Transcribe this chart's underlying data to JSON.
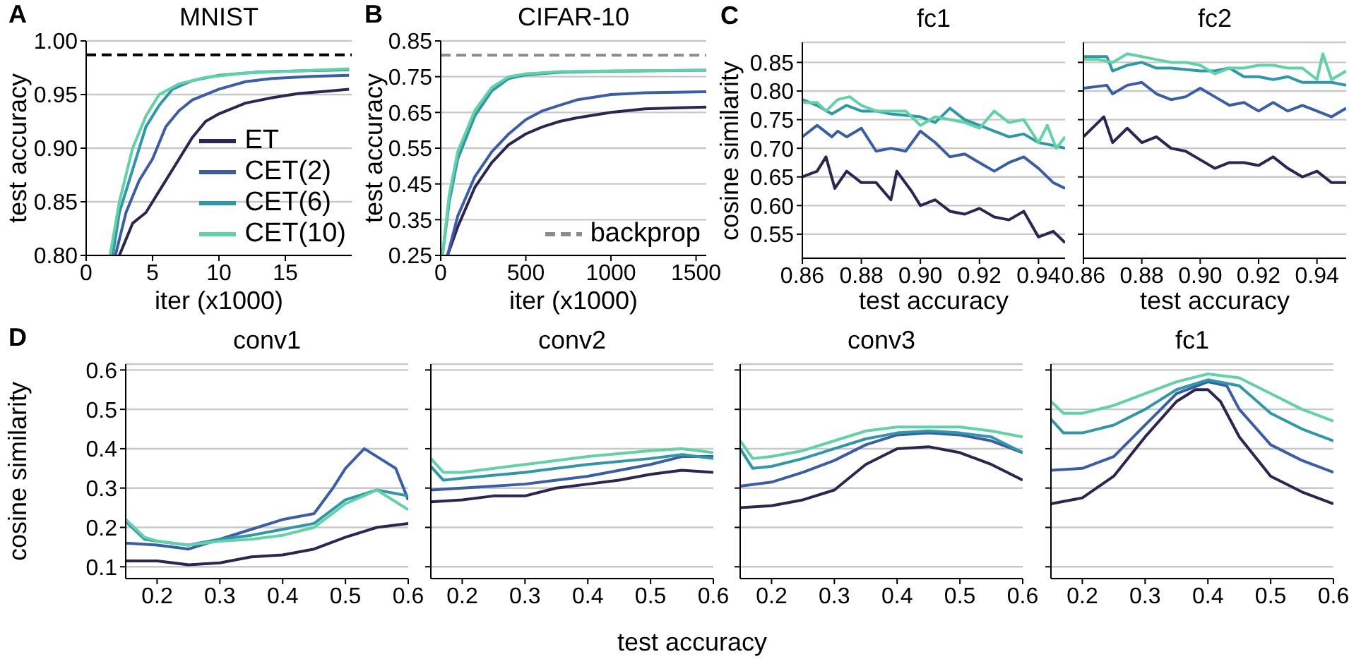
{
  "chart_data": [
    {
      "type": "line",
      "title": "MNIST",
      "xlabel": "iter (x1000)",
      "ylabel": "test accuracy",
      "annotations": [
        "A"
      ],
      "xlim": [
        0,
        20
      ],
      "xticks": [
        0,
        5,
        10,
        15
      ],
      "ylim": [
        0.8,
        1.0
      ],
      "yticks": [
        {
          "value": 0.8,
          "label": "0.80"
        },
        0.85,
        {
          "value": 0.9,
          "label": "0.90"
        },
        0.95,
        {
          "value": 1.0,
          "label": "1.00"
        }
      ],
      "grid": "y",
      "legend": "bottom right",
      "ref_lines": [
        {
          "axis": "y",
          "value": 0.987,
          "color": "#000000",
          "line_style": "dashed"
        }
      ],
      "series": [
        {
          "name": "ET",
          "color": "#2d2451",
          "x": [
            2.5,
            3.5,
            4.5,
            5,
            6,
            7,
            8,
            9,
            10,
            12,
            14,
            16,
            18,
            19.8
          ],
          "values": [
            0.8,
            0.83,
            0.84,
            0.85,
            0.87,
            0.89,
            0.91,
            0.925,
            0.932,
            0.942,
            0.947,
            0.951,
            0.953,
            0.955
          ]
        },
        {
          "name": "CET(2)",
          "color": "#3a5da8",
          "x": [
            2.2,
            3,
            4,
            5,
            6,
            7,
            8,
            10,
            12,
            14,
            17,
            19.8
          ],
          "values": [
            0.8,
            0.84,
            0.87,
            0.89,
            0.92,
            0.935,
            0.945,
            0.955,
            0.962,
            0.965,
            0.967,
            0.968
          ]
        },
        {
          "name": "CET(6)",
          "color": "#2e98a8",
          "x": [
            2,
            2.5,
            3.5,
            4.5,
            5.5,
            6.5,
            8,
            10,
            13,
            16,
            19.8
          ],
          "values": [
            0.8,
            0.84,
            0.88,
            0.92,
            0.94,
            0.955,
            0.963,
            0.968,
            0.971,
            0.972,
            0.973
          ]
        },
        {
          "name": "CET(10)",
          "color": "#5fd3a5",
          "x": [
            1.8,
            2.5,
            3.5,
            4.5,
            5.5,
            7,
            9,
            12,
            16,
            19.8
          ],
          "values": [
            0.8,
            0.85,
            0.9,
            0.93,
            0.95,
            0.96,
            0.966,
            0.97,
            0.972,
            0.974
          ]
        }
      ]
    },
    {
      "type": "line",
      "title": "CIFAR-10",
      "xlabel": "iter (x1000)",
      "ylabel": "test accuracy",
      "annotations": [
        "B"
      ],
      "xlim": [
        0,
        1560
      ],
      "xticks": [
        0,
        500,
        1000,
        1500
      ],
      "ylim": [
        0.25,
        0.85
      ],
      "yticks": [
        0.25,
        0.35,
        0.45,
        0.55,
        0.65,
        0.75,
        0.85
      ],
      "grid": "y",
      "legend": "bottom right",
      "ref_lines": [
        {
          "axis": "y",
          "value": 0.81,
          "label": "backprop",
          "color": "#8c8c8c",
          "line_style": "dashed"
        }
      ],
      "series": [
        {
          "color": "#2d2451",
          "x": [
            40,
            100,
            200,
            300,
            400,
            500,
            600,
            700,
            800,
            1000,
            1200,
            1400,
            1560
          ],
          "values": [
            0.25,
            0.33,
            0.44,
            0.51,
            0.56,
            0.59,
            0.61,
            0.625,
            0.635,
            0.65,
            0.66,
            0.663,
            0.665
          ]
        },
        {
          "color": "#3a5da8",
          "x": [
            40,
            100,
            200,
            300,
            400,
            500,
            600,
            700,
            800,
            1000,
            1200,
            1560
          ],
          "values": [
            0.25,
            0.36,
            0.47,
            0.54,
            0.59,
            0.63,
            0.655,
            0.67,
            0.685,
            0.7,
            0.705,
            0.708
          ]
        },
        {
          "color": "#2e98a8",
          "x": [
            10,
            50,
            100,
            200,
            300,
            400,
            500,
            700,
            1000,
            1560
          ],
          "values": [
            0.25,
            0.4,
            0.52,
            0.64,
            0.71,
            0.745,
            0.755,
            0.762,
            0.765,
            0.768
          ]
        },
        {
          "color": "#5fd3a5",
          "x": [
            10,
            50,
            100,
            200,
            300,
            400,
            500,
            700,
            1000,
            1560
          ],
          "values": [
            0.25,
            0.42,
            0.54,
            0.655,
            0.72,
            0.75,
            0.758,
            0.764,
            0.766,
            0.768
          ]
        }
      ]
    },
    {
      "type": "line",
      "title": "fc1",
      "xlabel": "test accuracy",
      "ylabel": "cosine similarity",
      "annotations": [
        "C"
      ],
      "xlim": [
        0.86,
        0.949
      ],
      "xticks": [
        0.86,
        0.88,
        {
          "value": 0.9,
          "label": "0.90"
        },
        0.92,
        0.94
      ],
      "ylim": [
        0.508,
        0.885
      ],
      "yticks": [
        0.55,
        {
          "value": 0.6,
          "label": "0.60"
        },
        0.65,
        {
          "value": 0.7,
          "label": "0.70"
        },
        0.75,
        {
          "value": 0.8,
          "label": "0.80"
        },
        0.85
      ],
      "grid": "y",
      "series": [
        {
          "color": "#2d2451",
          "x": [
            0.86,
            0.865,
            0.868,
            0.871,
            0.875,
            0.88,
            0.885,
            0.89,
            0.892,
            0.897,
            0.9,
            0.905,
            0.91,
            0.915,
            0.92,
            0.925,
            0.93,
            0.935,
            0.94,
            0.945,
            0.949
          ],
          "values": [
            0.65,
            0.66,
            0.685,
            0.63,
            0.66,
            0.64,
            0.64,
            0.61,
            0.66,
            0.625,
            0.6,
            0.61,
            0.59,
            0.585,
            0.595,
            0.58,
            0.575,
            0.59,
            0.545,
            0.555,
            0.535
          ]
        },
        {
          "color": "#3a5da8",
          "x": [
            0.86,
            0.865,
            0.87,
            0.872,
            0.875,
            0.88,
            0.885,
            0.89,
            0.895,
            0.9,
            0.905,
            0.91,
            0.915,
            0.92,
            0.925,
            0.93,
            0.935,
            0.94,
            0.945,
            0.949
          ],
          "values": [
            0.72,
            0.74,
            0.72,
            0.73,
            0.72,
            0.735,
            0.695,
            0.7,
            0.695,
            0.73,
            0.71,
            0.685,
            0.69,
            0.675,
            0.66,
            0.675,
            0.685,
            0.665,
            0.64,
            0.63
          ]
        },
        {
          "color": "#2e98a8",
          "x": [
            0.86,
            0.865,
            0.87,
            0.875,
            0.88,
            0.885,
            0.89,
            0.9,
            0.905,
            0.91,
            0.915,
            0.92,
            0.925,
            0.93,
            0.935,
            0.94,
            0.945,
            0.949
          ],
          "values": [
            0.785,
            0.775,
            0.76,
            0.775,
            0.765,
            0.765,
            0.76,
            0.755,
            0.745,
            0.77,
            0.75,
            0.74,
            0.73,
            0.72,
            0.725,
            0.71,
            0.705,
            0.7
          ]
        },
        {
          "color": "#5fd3a5",
          "x": [
            0.86,
            0.865,
            0.868,
            0.872,
            0.876,
            0.88,
            0.885,
            0.89,
            0.895,
            0.9,
            0.905,
            0.91,
            0.915,
            0.92,
            0.925,
            0.93,
            0.935,
            0.94,
            0.943,
            0.946,
            0.949
          ],
          "values": [
            0.78,
            0.78,
            0.765,
            0.785,
            0.79,
            0.775,
            0.765,
            0.765,
            0.765,
            0.74,
            0.755,
            0.75,
            0.745,
            0.735,
            0.765,
            0.745,
            0.75,
            0.71,
            0.74,
            0.7,
            0.72
          ]
        }
      ]
    },
    {
      "type": "line",
      "title": "fc2",
      "xlabel": "test accuracy",
      "xlim": [
        0.86,
        0.95
      ],
      "xticks": [
        0.86,
        0.88,
        {
          "value": 0.9,
          "label": "0.90"
        },
        0.92,
        0.94
      ],
      "ylim": [
        0.508,
        0.885
      ],
      "yticks": [
        0.55,
        0.6,
        0.65,
        0.7,
        0.75,
        0.8,
        0.85
      ],
      "grid": "y",
      "tick_labels": "x",
      "series": [
        {
          "color": "#2d2451",
          "x": [
            0.86,
            0.865,
            0.867,
            0.87,
            0.875,
            0.88,
            0.885,
            0.89,
            0.895,
            0.9,
            0.905,
            0.91,
            0.915,
            0.92,
            0.925,
            0.93,
            0.935,
            0.94,
            0.945,
            0.95
          ],
          "values": [
            0.72,
            0.745,
            0.755,
            0.71,
            0.735,
            0.71,
            0.72,
            0.7,
            0.695,
            0.68,
            0.665,
            0.675,
            0.675,
            0.67,
            0.685,
            0.665,
            0.65,
            0.66,
            0.64,
            0.64
          ]
        },
        {
          "color": "#3a5da8",
          "x": [
            0.86,
            0.868,
            0.87,
            0.875,
            0.88,
            0.885,
            0.89,
            0.895,
            0.9,
            0.905,
            0.91,
            0.915,
            0.92,
            0.925,
            0.93,
            0.935,
            0.94,
            0.945,
            0.95
          ],
          "values": [
            0.805,
            0.81,
            0.795,
            0.81,
            0.815,
            0.795,
            0.785,
            0.79,
            0.805,
            0.79,
            0.775,
            0.78,
            0.765,
            0.78,
            0.765,
            0.775,
            0.765,
            0.755,
            0.77
          ]
        },
        {
          "color": "#2e98a8",
          "x": [
            0.86,
            0.868,
            0.87,
            0.875,
            0.88,
            0.885,
            0.89,
            0.9,
            0.905,
            0.91,
            0.915,
            0.92,
            0.925,
            0.93,
            0.935,
            0.94,
            0.945,
            0.95
          ],
          "values": [
            0.86,
            0.86,
            0.835,
            0.845,
            0.85,
            0.84,
            0.84,
            0.835,
            0.835,
            0.84,
            0.825,
            0.825,
            0.82,
            0.825,
            0.815,
            0.815,
            0.815,
            0.81
          ]
        },
        {
          "color": "#5fd3a5",
          "x": [
            0.86,
            0.865,
            0.87,
            0.875,
            0.88,
            0.885,
            0.89,
            0.895,
            0.9,
            0.905,
            0.91,
            0.915,
            0.92,
            0.925,
            0.93,
            0.935,
            0.94,
            0.942,
            0.945,
            0.95
          ],
          "values": [
            0.855,
            0.855,
            0.85,
            0.865,
            0.86,
            0.855,
            0.85,
            0.85,
            0.845,
            0.83,
            0.84,
            0.84,
            0.845,
            0.845,
            0.84,
            0.84,
            0.82,
            0.865,
            0.82,
            0.835
          ]
        }
      ]
    },
    {
      "type": "line",
      "title": "conv1",
      "ylabel": "cosine similarity",
      "annotations": [
        "D"
      ],
      "xlim": [
        0.15,
        0.6
      ],
      "xticks": [
        0.2,
        0.3,
        0.4,
        0.5,
        0.6
      ],
      "ylim": [
        0.07,
        0.615
      ],
      "yticks": [
        0.1,
        0.2,
        0.3,
        0.4,
        0.5,
        0.6
      ],
      "grid": "y",
      "series": [
        {
          "color": "#2d2451",
          "x": [
            0.15,
            0.2,
            0.25,
            0.3,
            0.35,
            0.4,
            0.45,
            0.5,
            0.55,
            0.6
          ],
          "values": [
            0.115,
            0.115,
            0.105,
            0.11,
            0.125,
            0.13,
            0.145,
            0.175,
            0.2,
            0.21
          ]
        },
        {
          "color": "#3a5da8",
          "x": [
            0.15,
            0.2,
            0.25,
            0.3,
            0.35,
            0.4,
            0.45,
            0.48,
            0.5,
            0.53,
            0.56,
            0.58,
            0.6
          ],
          "values": [
            0.16,
            0.155,
            0.145,
            0.17,
            0.195,
            0.22,
            0.235,
            0.3,
            0.35,
            0.4,
            0.37,
            0.35,
            0.27
          ]
        },
        {
          "color": "#2e98a8",
          "x": [
            0.15,
            0.18,
            0.2,
            0.25,
            0.3,
            0.35,
            0.4,
            0.45,
            0.5,
            0.55,
            0.6
          ],
          "values": [
            0.215,
            0.17,
            0.165,
            0.155,
            0.17,
            0.18,
            0.195,
            0.21,
            0.27,
            0.295,
            0.28
          ]
        },
        {
          "color": "#5fd3a5",
          "x": [
            0.15,
            0.18,
            0.2,
            0.25,
            0.3,
            0.35,
            0.4,
            0.45,
            0.5,
            0.55,
            0.6
          ],
          "values": [
            0.22,
            0.175,
            0.165,
            0.155,
            0.165,
            0.17,
            0.18,
            0.2,
            0.26,
            0.295,
            0.245
          ]
        }
      ]
    },
    {
      "type": "line",
      "title": "conv2",
      "xlabel": "test accuracy",
      "xlim": [
        0.15,
        0.6
      ],
      "xticks": [
        0.2,
        0.3,
        0.4,
        0.5,
        0.6
      ],
      "ylim": [
        0.07,
        0.615
      ],
      "yticks": [
        0.1,
        0.2,
        0.3,
        0.4,
        0.5,
        0.6
      ],
      "grid": "y",
      "tick_labels": "x",
      "series": [
        {
          "color": "#2d2451",
          "x": [
            0.15,
            0.2,
            0.25,
            0.3,
            0.35,
            0.4,
            0.45,
            0.5,
            0.55,
            0.6
          ],
          "values": [
            0.265,
            0.27,
            0.28,
            0.28,
            0.3,
            0.31,
            0.32,
            0.335,
            0.345,
            0.34
          ]
        },
        {
          "color": "#3a5da8",
          "x": [
            0.15,
            0.2,
            0.3,
            0.4,
            0.5,
            0.55,
            0.6
          ],
          "values": [
            0.295,
            0.3,
            0.31,
            0.33,
            0.36,
            0.38,
            0.38
          ]
        },
        {
          "color": "#2e98a8",
          "x": [
            0.15,
            0.17,
            0.2,
            0.3,
            0.4,
            0.5,
            0.55,
            0.6
          ],
          "values": [
            0.355,
            0.32,
            0.325,
            0.34,
            0.36,
            0.375,
            0.385,
            0.375
          ]
        },
        {
          "color": "#5fd3a5",
          "x": [
            0.15,
            0.17,
            0.2,
            0.3,
            0.4,
            0.5,
            0.55,
            0.6
          ],
          "values": [
            0.375,
            0.34,
            0.34,
            0.36,
            0.38,
            0.395,
            0.4,
            0.39
          ]
        }
      ]
    },
    {
      "type": "line",
      "title": "conv3",
      "xlim": [
        0.15,
        0.6
      ],
      "xticks": [
        0.2,
        0.3,
        0.4,
        0.5,
        0.6
      ],
      "ylim": [
        0.07,
        0.615
      ],
      "yticks": [
        0.1,
        0.2,
        0.3,
        0.4,
        0.5,
        0.6
      ],
      "grid": "y",
      "tick_labels": "x",
      "series": [
        {
          "color": "#2d2451",
          "x": [
            0.15,
            0.2,
            0.25,
            0.3,
            0.35,
            0.4,
            0.45,
            0.5,
            0.55,
            0.6
          ],
          "values": [
            0.25,
            0.255,
            0.27,
            0.295,
            0.36,
            0.4,
            0.405,
            0.39,
            0.36,
            0.32
          ]
        },
        {
          "color": "#3a5da8",
          "x": [
            0.15,
            0.2,
            0.25,
            0.3,
            0.35,
            0.4,
            0.45,
            0.5,
            0.55,
            0.6
          ],
          "values": [
            0.305,
            0.315,
            0.34,
            0.37,
            0.41,
            0.435,
            0.44,
            0.435,
            0.42,
            0.39
          ]
        },
        {
          "color": "#2e98a8",
          "x": [
            0.15,
            0.17,
            0.2,
            0.25,
            0.3,
            0.35,
            0.4,
            0.45,
            0.5,
            0.55,
            0.6
          ],
          "values": [
            0.4,
            0.35,
            0.355,
            0.375,
            0.4,
            0.425,
            0.44,
            0.445,
            0.44,
            0.43,
            0.39
          ]
        },
        {
          "color": "#5fd3a5",
          "x": [
            0.15,
            0.17,
            0.2,
            0.25,
            0.3,
            0.35,
            0.4,
            0.45,
            0.5,
            0.55,
            0.6
          ],
          "values": [
            0.42,
            0.375,
            0.38,
            0.395,
            0.42,
            0.445,
            0.455,
            0.455,
            0.455,
            0.445,
            0.43
          ]
        }
      ]
    },
    {
      "type": "line",
      "title": "fc1",
      "xlim": [
        0.15,
        0.6
      ],
      "xticks": [
        0.2,
        0.3,
        0.4,
        0.5,
        0.6
      ],
      "ylim": [
        0.07,
        0.615
      ],
      "yticks": [
        0.1,
        0.2,
        0.3,
        0.4,
        0.5,
        0.6
      ],
      "grid": "y",
      "tick_labels": "x",
      "series": [
        {
          "color": "#2d2451",
          "x": [
            0.15,
            0.2,
            0.25,
            0.3,
            0.35,
            0.38,
            0.4,
            0.42,
            0.45,
            0.5,
            0.55,
            0.6
          ],
          "values": [
            0.26,
            0.275,
            0.33,
            0.43,
            0.52,
            0.55,
            0.55,
            0.52,
            0.43,
            0.33,
            0.29,
            0.26
          ]
        },
        {
          "color": "#3a5da8",
          "x": [
            0.15,
            0.2,
            0.25,
            0.3,
            0.35,
            0.4,
            0.43,
            0.45,
            0.5,
            0.55,
            0.6
          ],
          "values": [
            0.345,
            0.35,
            0.38,
            0.46,
            0.54,
            0.57,
            0.56,
            0.5,
            0.41,
            0.37,
            0.34
          ]
        },
        {
          "color": "#2e98a8",
          "x": [
            0.15,
            0.17,
            0.2,
            0.25,
            0.3,
            0.35,
            0.4,
            0.45,
            0.5,
            0.55,
            0.6
          ],
          "values": [
            0.475,
            0.44,
            0.44,
            0.46,
            0.5,
            0.55,
            0.575,
            0.56,
            0.49,
            0.45,
            0.42
          ]
        },
        {
          "color": "#5fd3a5",
          "x": [
            0.15,
            0.17,
            0.2,
            0.25,
            0.3,
            0.35,
            0.4,
            0.45,
            0.5,
            0.55,
            0.6
          ],
          "values": [
            0.52,
            0.49,
            0.49,
            0.51,
            0.54,
            0.57,
            0.59,
            0.58,
            0.54,
            0.5,
            0.47
          ]
        }
      ]
    }
  ]
}
